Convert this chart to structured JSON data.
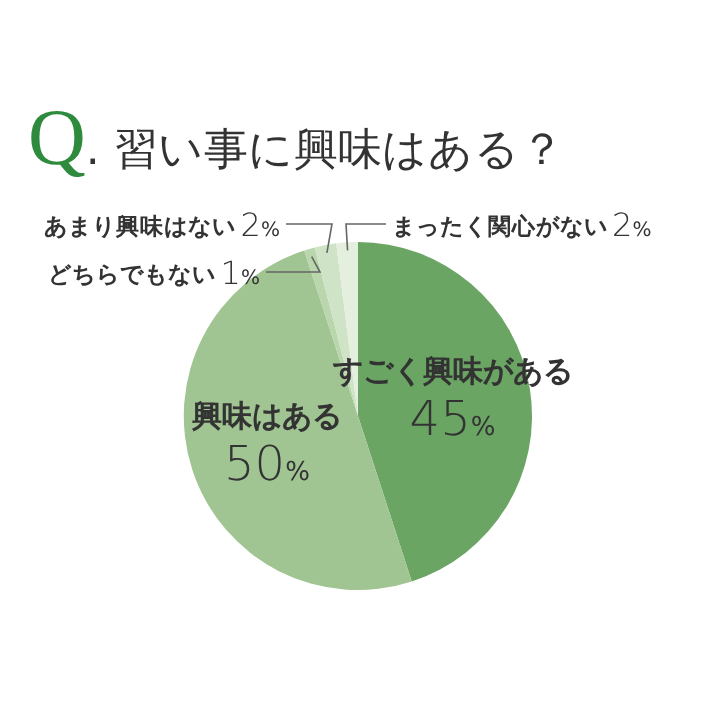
{
  "chart_data": {
    "type": "pie",
    "title": "Q. 習い事に興味はある？",
    "categories": [
      "すごく興味がある",
      "興味はある",
      "どちらでもない",
      "あまり興味はない",
      "まったく関心がない"
    ],
    "values": [
      45,
      50,
      1,
      2,
      2
    ],
    "value_labels": [
      "45%",
      "50%",
      "1%",
      "2%",
      "2%"
    ],
    "colors": [
      "#6aa563",
      "#a0c592",
      "#b9d6ad",
      "#cfe3c6",
      "#e4efdd"
    ]
  }
}
